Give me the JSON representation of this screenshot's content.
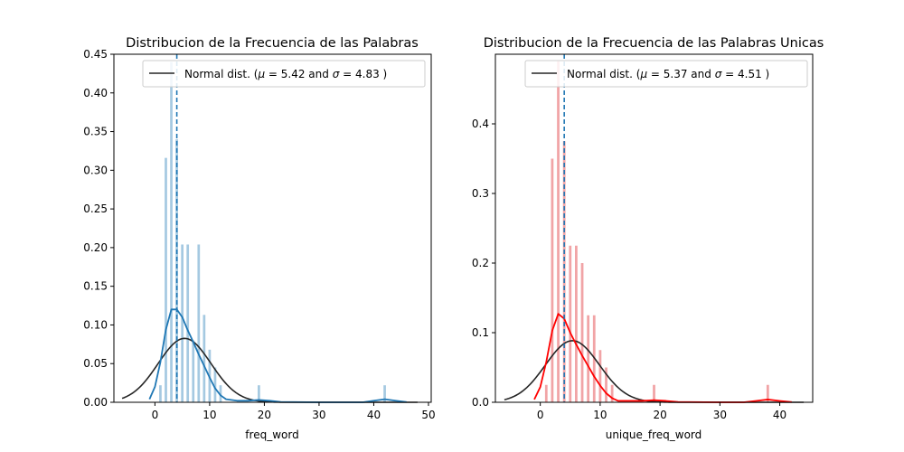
{
  "chart_data": [
    {
      "type": "histogram",
      "title": "Distribucion de la Frecuencia de las Palabras",
      "xlabel": "freq_word",
      "ylabel": "",
      "xlim": [
        -7.5,
        50.5
      ],
      "ylim": [
        0,
        0.45
      ],
      "xticks": [
        0,
        10,
        20,
        30,
        40,
        50
      ],
      "yticks": [
        "0.00",
        "0.05",
        "0.10",
        "0.15",
        "0.20",
        "0.25",
        "0.30",
        "0.35",
        "0.40",
        "0.45"
      ],
      "bar_color": "#1f77b4",
      "bar_opacity": 0.4,
      "bar_width": 0.45,
      "bars": [
        {
          "x": 1,
          "y": 0.022
        },
        {
          "x": 2,
          "y": 0.316
        },
        {
          "x": 3,
          "y": 0.44
        },
        {
          "x": 4,
          "y": 0.34
        },
        {
          "x": 5,
          "y": 0.204
        },
        {
          "x": 6,
          "y": 0.204
        },
        {
          "x": 7,
          "y": 0.08
        },
        {
          "x": 8,
          "y": 0.204
        },
        {
          "x": 9,
          "y": 0.113
        },
        {
          "x": 10,
          "y": 0.068
        },
        {
          "x": 11,
          "y": 0.045
        },
        {
          "x": 12,
          "y": 0.022
        },
        {
          "x": 19,
          "y": 0.022
        },
        {
          "x": 42,
          "y": 0.022
        }
      ],
      "kde_color": "#1f77b4",
      "kde": [
        [
          -1,
          0.004
        ],
        [
          0,
          0.02
        ],
        [
          1,
          0.052
        ],
        [
          2,
          0.094
        ],
        [
          3,
          0.12
        ],
        [
          4,
          0.12
        ],
        [
          5,
          0.11
        ],
        [
          6,
          0.093
        ],
        [
          7,
          0.078
        ],
        [
          8,
          0.062
        ],
        [
          9,
          0.047
        ],
        [
          10,
          0.032
        ],
        [
          11,
          0.018
        ],
        [
          12,
          0.009
        ],
        [
          13,
          0.004
        ],
        [
          15,
          0.002
        ],
        [
          17,
          0.002
        ],
        [
          19,
          0.003
        ],
        [
          21,
          0.002
        ],
        [
          23,
          0.0004
        ],
        [
          30,
          0.0
        ],
        [
          38,
          0.0
        ],
        [
          40,
          0.002
        ],
        [
          42,
          0.004
        ],
        [
          44,
          0.002
        ],
        [
          46,
          0.0003
        ]
      ],
      "normal": {
        "mu": 5.42,
        "sigma": 4.83,
        "range": [
          -6,
          48
        ],
        "color": "#262626"
      },
      "vline": {
        "x": 4,
        "color": "#1f77b4"
      },
      "legend": {
        "position": "upper right",
        "label": "Normal dist. ($\\mu =$ 5.42 and $\\sigma =$ 4.83 )",
        "prefix": "Normal dist. (",
        "mu_symbol": "μ",
        "mu_text": " =  5.42 and ",
        "sigma_symbol": "σ",
        "sigma_text": " =  4.83 )"
      }
    },
    {
      "type": "histogram",
      "title": "Distribucion de la Frecuencia de las Palabras Unicas",
      "xlabel": "unique_freq_word",
      "ylabel": "",
      "xlim": [
        -7.5,
        45.5
      ],
      "ylim": [
        0,
        0.5
      ],
      "xticks": [
        0,
        10,
        20,
        30,
        40
      ],
      "yticks": [
        "0.0",
        "0.1",
        "0.2",
        "0.3",
        "0.4"
      ],
      "bar_color": "#e8686a",
      "bar_opacity": 0.6,
      "bar_width": 0.42,
      "bars": [
        {
          "x": 1,
          "y": 0.025
        },
        {
          "x": 2,
          "y": 0.35
        },
        {
          "x": 3,
          "y": 0.49
        },
        {
          "x": 4,
          "y": 0.375
        },
        {
          "x": 5,
          "y": 0.225
        },
        {
          "x": 6,
          "y": 0.225
        },
        {
          "x": 7,
          "y": 0.2
        },
        {
          "x": 8,
          "y": 0.125
        },
        {
          "x": 9,
          "y": 0.125
        },
        {
          "x": 10,
          "y": 0.075
        },
        {
          "x": 11,
          "y": 0.05
        },
        {
          "x": 12,
          "y": 0.025
        },
        {
          "x": 19,
          "y": 0.025
        },
        {
          "x": 38,
          "y": 0.025
        }
      ],
      "kde_color": "#ff0000",
      "kde": [
        [
          -1,
          0.004
        ],
        [
          0,
          0.022
        ],
        [
          1,
          0.058
        ],
        [
          2,
          0.103
        ],
        [
          3,
          0.127
        ],
        [
          4,
          0.12
        ],
        [
          5,
          0.1
        ],
        [
          6,
          0.083
        ],
        [
          7,
          0.067
        ],
        [
          8,
          0.052
        ],
        [
          9,
          0.037
        ],
        [
          10,
          0.024
        ],
        [
          11,
          0.013
        ],
        [
          12,
          0.006
        ],
        [
          13,
          0.002
        ],
        [
          15,
          0.002
        ],
        [
          17,
          0.002
        ],
        [
          19,
          0.003
        ],
        [
          21,
          0.002
        ],
        [
          23,
          0.0004
        ],
        [
          30,
          0.0
        ],
        [
          34,
          0.0
        ],
        [
          36,
          0.002
        ],
        [
          38,
          0.004
        ],
        [
          40,
          0.002
        ],
        [
          42,
          0.0003
        ]
      ],
      "normal": {
        "mu": 5.37,
        "sigma": 4.51,
        "range": [
          -6,
          44
        ],
        "color": "#262626"
      },
      "vline": {
        "x": 4,
        "color": "#1f77b4"
      },
      "legend": {
        "position": "upper right",
        "label": "Normal dist. ($\\mu =$ 5.37 and $\\sigma =$ 4.51 )",
        "prefix": "Normal dist. (",
        "mu_symbol": "μ",
        "mu_text": " =  5.37 and ",
        "sigma_symbol": "σ",
        "sigma_text": " =  4.51 )"
      }
    }
  ]
}
